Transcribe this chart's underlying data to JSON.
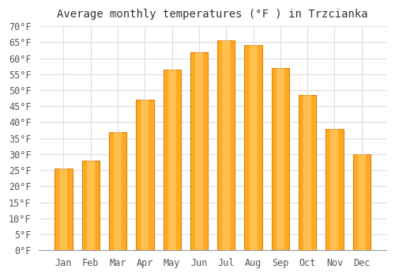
{
  "title": "Average monthly temperatures (°F ) in Trzcianka",
  "months": [
    "Jan",
    "Feb",
    "Mar",
    "Apr",
    "May",
    "Jun",
    "Jul",
    "Aug",
    "Sep",
    "Oct",
    "Nov",
    "Dec"
  ],
  "values": [
    25.5,
    28,
    37,
    47,
    56.5,
    62,
    65.5,
    64,
    57,
    48.5,
    38,
    30
  ],
  "bar_color": "#FFAA22",
  "bar_edge_color": "#E08010",
  "background_color": "#FFFFFF",
  "grid_color": "#DDDDDD",
  "ylim": [
    0,
    70
  ],
  "yticks": [
    0,
    5,
    10,
    15,
    20,
    25,
    30,
    35,
    40,
    45,
    50,
    55,
    60,
    65,
    70
  ],
  "title_fontsize": 10,
  "tick_fontsize": 8.5,
  "bar_width": 0.65
}
